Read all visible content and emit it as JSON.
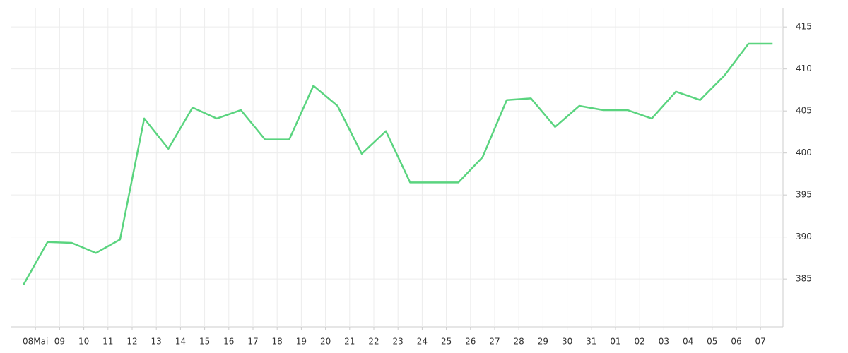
{
  "chart_data": {
    "type": "line",
    "x": [
      0,
      1,
      2,
      3,
      4,
      5,
      6,
      7,
      8,
      9,
      10,
      11,
      12,
      13,
      14,
      15,
      16,
      17,
      18,
      19,
      20,
      21,
      22,
      23,
      24,
      25,
      26,
      27,
      28,
      29,
      30,
      31
    ],
    "series": [
      {
        "color": "#5ad47f",
        "values": [
          384.3,
          389.4,
          389.3,
          388.1,
          389.7,
          404.1,
          400.5,
          405.4,
          404.1,
          405.1,
          401.6,
          401.6,
          408.0,
          405.6,
          399.9,
          402.6,
          396.5,
          396.5,
          396.5,
          399.5,
          406.3,
          406.5,
          403.1,
          405.6,
          405.1,
          405.1,
          404.1,
          407.3,
          406.3,
          409.2,
          413.0,
          413.0
        ]
      }
    ],
    "xlim": [
      -0.5,
      31.43
    ],
    "xticks": [
      {
        "value": 0.5,
        "label": "08Mai"
      },
      {
        "value": 1.5,
        "label": "09"
      },
      {
        "value": 2.5,
        "label": "10"
      },
      {
        "value": 3.5,
        "label": "11"
      },
      {
        "value": 4.5,
        "label": "12"
      },
      {
        "value": 5.5,
        "label": "13"
      },
      {
        "value": 6.5,
        "label": "14"
      },
      {
        "value": 7.5,
        "label": "15"
      },
      {
        "value": 8.5,
        "label": "16"
      },
      {
        "value": 9.5,
        "label": "17"
      },
      {
        "value": 10.5,
        "label": "18"
      },
      {
        "value": 11.5,
        "label": "19"
      },
      {
        "value": 12.5,
        "label": "20"
      },
      {
        "value": 13.5,
        "label": "21"
      },
      {
        "value": 14.5,
        "label": "22"
      },
      {
        "value": 15.5,
        "label": "23"
      },
      {
        "value": 16.5,
        "label": "24"
      },
      {
        "value": 17.5,
        "label": "25"
      },
      {
        "value": 18.5,
        "label": "26"
      },
      {
        "value": 19.5,
        "label": "27"
      },
      {
        "value": 20.5,
        "label": "28"
      },
      {
        "value": 21.5,
        "label": "29"
      },
      {
        "value": 22.5,
        "label": "30"
      },
      {
        "value": 23.5,
        "label": "31"
      },
      {
        "value": 24.5,
        "label": "01"
      },
      {
        "value": 25.5,
        "label": "02"
      },
      {
        "value": 26.5,
        "label": "03"
      },
      {
        "value": 27.5,
        "label": "04"
      },
      {
        "value": 28.5,
        "label": "05"
      },
      {
        "value": 29.5,
        "label": "06"
      },
      {
        "value": 30.5,
        "label": "07"
      }
    ],
    "ylim": [
      379.3,
      417.2
    ],
    "yticks": [
      385,
      390,
      395,
      400,
      405,
      410,
      415
    ],
    "grid": true
  }
}
